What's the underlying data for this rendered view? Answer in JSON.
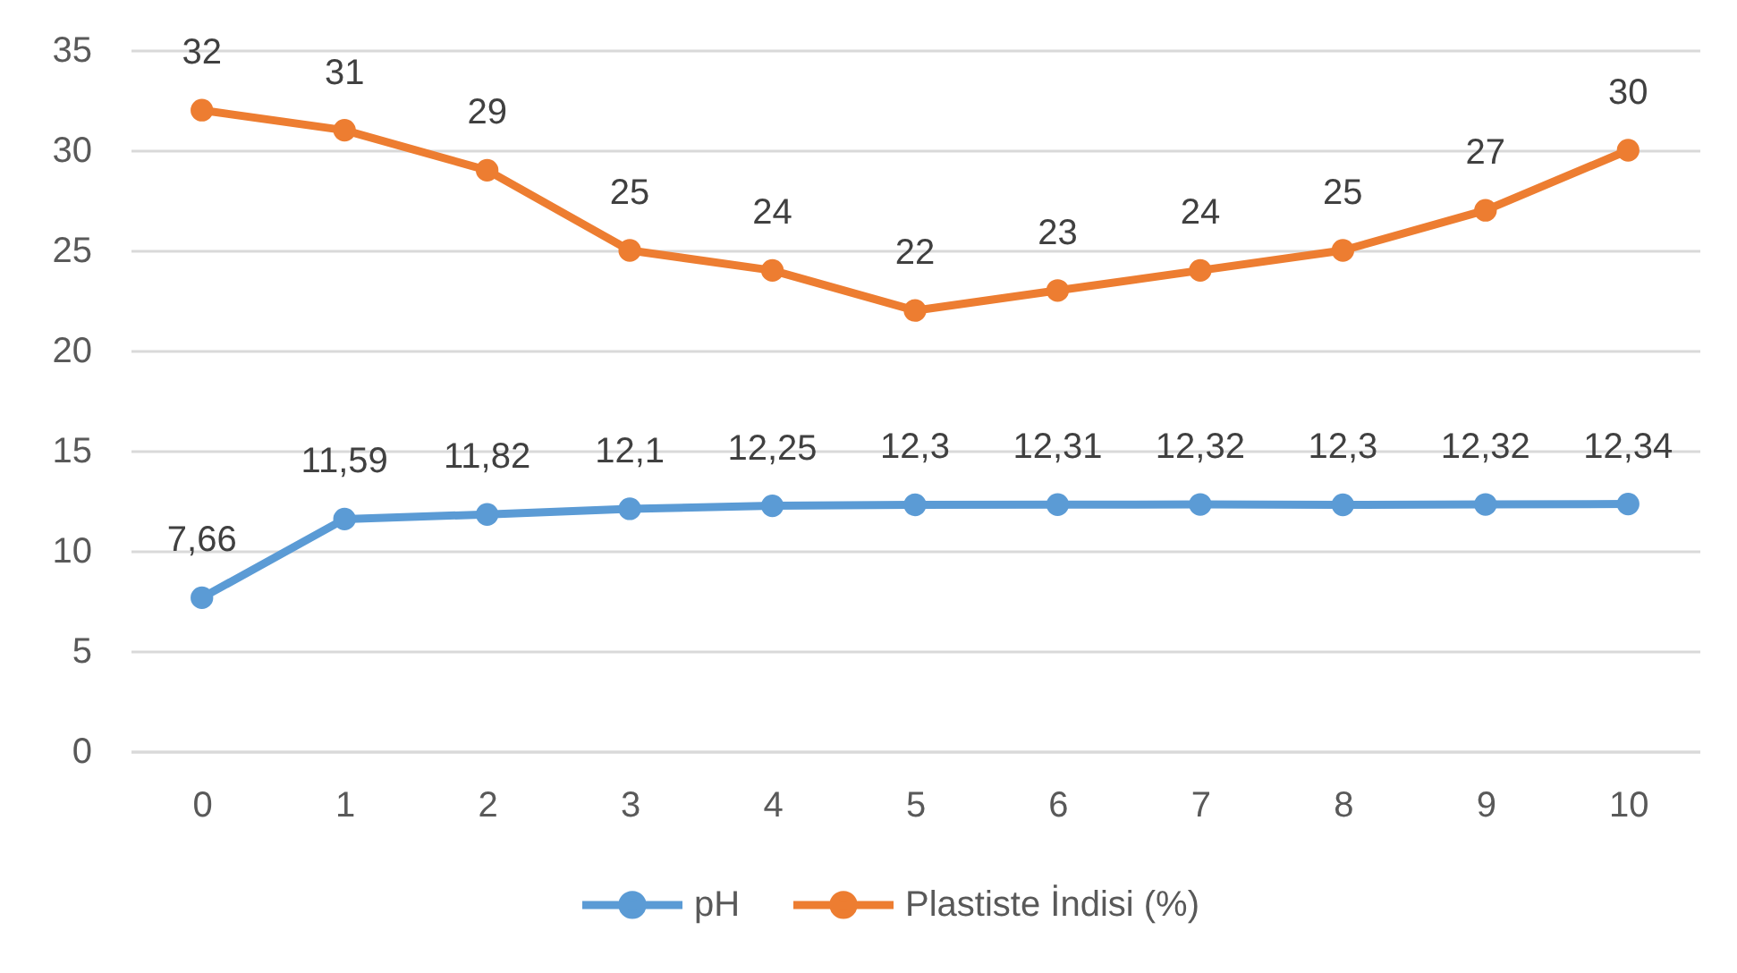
{
  "chart_data": {
    "type": "line",
    "categories": [
      "0",
      "1",
      "2",
      "3",
      "4",
      "5",
      "6",
      "7",
      "8",
      "9",
      "10"
    ],
    "series": [
      {
        "name": "pH",
        "color": "#5b9bd5",
        "values": [
          7.66,
          11.59,
          11.82,
          12.1,
          12.25,
          12.3,
          12.31,
          12.32,
          12.3,
          12.32,
          12.34
        ],
        "value_labels": [
          "7,66",
          "11,59",
          "11,82",
          "12,1",
          "12,25",
          "12,3",
          "12,31",
          "12,32",
          "12,3",
          "12,32",
          "12,34"
        ]
      },
      {
        "name": "Plastiste İndisi (%)",
        "color": "#ed7d31",
        "values": [
          32,
          31,
          29,
          25,
          24,
          22,
          23,
          24,
          25,
          27,
          30
        ],
        "value_labels": [
          "32",
          "31",
          "29",
          "25",
          "24",
          "22",
          "23",
          "24",
          "25",
          "27",
          "30"
        ]
      }
    ],
    "ylim": [
      0,
      35
    ],
    "yticks": [
      0,
      5,
      10,
      15,
      20,
      25,
      30,
      35
    ],
    "grid": "y",
    "legend": "bottom",
    "marker": "circle"
  }
}
